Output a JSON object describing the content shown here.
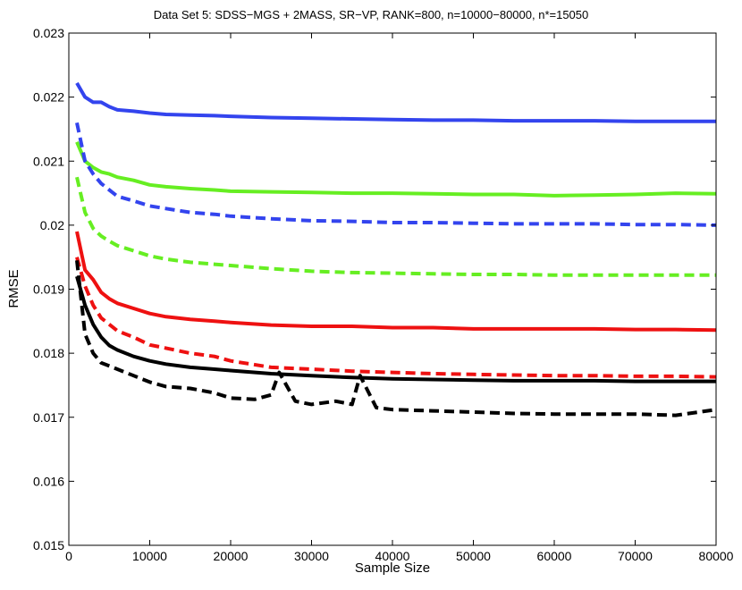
{
  "chart_data": {
    "type": "line",
    "title": "Data Set 5: SDSS−MGS + 2MASS,  SR−VP, RANK=800, n=10000−80000, n*=15050",
    "xlabel": "Sample Size",
    "ylabel": "RMSE",
    "xlim": [
      0,
      80000
    ],
    "ylim": [
      0.015,
      0.023
    ],
    "x_ticks": [
      0,
      10000,
      20000,
      30000,
      40000,
      50000,
      60000,
      70000,
      80000
    ],
    "y_ticks": [
      0.015,
      0.016,
      0.017,
      0.018,
      0.019,
      0.02,
      0.021,
      0.022,
      0.023
    ],
    "x_tick_labels": [
      "0",
      "10000",
      "20000",
      "30000",
      "40000",
      "50000",
      "60000",
      "70000",
      "80000"
    ],
    "y_tick_labels": [
      "0.015",
      "0.016",
      "0.017",
      "0.018",
      "0.019",
      "0.02",
      "0.021",
      "0.022",
      "0.023"
    ],
    "grid": false,
    "legend": "none",
    "series": [
      {
        "color": "#3344ee",
        "style": "solid",
        "x": [
          1000,
          2000,
          3000,
          4000,
          5000,
          6000,
          8000,
          10000,
          12000,
          15000,
          18000,
          20000,
          25000,
          30000,
          35000,
          40000,
          45000,
          50000,
          55000,
          60000,
          65000,
          70000,
          75000,
          80000
        ],
        "y": [
          0.02222,
          0.022,
          0.02192,
          0.02192,
          0.02185,
          0.0218,
          0.02178,
          0.02175,
          0.02173,
          0.02172,
          0.02171,
          0.0217,
          0.02168,
          0.02167,
          0.02166,
          0.02165,
          0.02164,
          0.02164,
          0.02163,
          0.02163,
          0.02163,
          0.02162,
          0.02162,
          0.02162
        ]
      },
      {
        "color": "#66ee22",
        "style": "solid",
        "x": [
          1000,
          2000,
          3000,
          4000,
          5000,
          6000,
          8000,
          10000,
          12000,
          15000,
          18000,
          20000,
          25000,
          30000,
          35000,
          40000,
          45000,
          50000,
          55000,
          60000,
          65000,
          70000,
          75000,
          80000
        ],
        "y": [
          0.0213,
          0.021,
          0.0209,
          0.02083,
          0.0208,
          0.02075,
          0.0207,
          0.02063,
          0.0206,
          0.02057,
          0.02055,
          0.02053,
          0.02052,
          0.02051,
          0.0205,
          0.0205,
          0.02049,
          0.02048,
          0.02048,
          0.02046,
          0.02047,
          0.02048,
          0.0205,
          0.02049
        ]
      },
      {
        "color": "#3344ee",
        "style": "dashed",
        "x": [
          1000,
          2000,
          3000,
          4000,
          5000,
          6000,
          8000,
          10000,
          12000,
          15000,
          18000,
          20000,
          25000,
          30000,
          35000,
          40000,
          45000,
          50000,
          55000,
          60000,
          65000,
          70000,
          75000,
          80000
        ],
        "y": [
          0.0216,
          0.021,
          0.0208,
          0.02065,
          0.02055,
          0.02045,
          0.02038,
          0.0203,
          0.02026,
          0.0202,
          0.02017,
          0.02014,
          0.0201,
          0.02007,
          0.02006,
          0.02004,
          0.02004,
          0.02003,
          0.02002,
          0.02002,
          0.02002,
          0.02001,
          0.02001,
          0.02
        ]
      },
      {
        "color": "#66ee22",
        "style": "dashed",
        "x": [
          1000,
          2000,
          3000,
          4000,
          5000,
          6000,
          8000,
          10000,
          12000,
          15000,
          18000,
          20000,
          25000,
          30000,
          35000,
          40000,
          45000,
          50000,
          55000,
          60000,
          65000,
          70000,
          75000,
          80000
        ],
        "y": [
          0.02075,
          0.0202,
          0.01995,
          0.01983,
          0.01975,
          0.01968,
          0.0196,
          0.01952,
          0.01947,
          0.01942,
          0.01939,
          0.01937,
          0.01932,
          0.01928,
          0.01926,
          0.01925,
          0.01924,
          0.01923,
          0.01923,
          0.01922,
          0.01922,
          0.01922,
          0.01922,
          0.01922
        ]
      },
      {
        "color": "#ee1111",
        "style": "solid",
        "x": [
          1000,
          2000,
          3000,
          4000,
          5000,
          6000,
          8000,
          10000,
          12000,
          15000,
          18000,
          20000,
          25000,
          30000,
          35000,
          40000,
          45000,
          50000,
          55000,
          60000,
          65000,
          70000,
          75000,
          80000
        ],
        "y": [
          0.0199,
          0.0193,
          0.01915,
          0.01895,
          0.01885,
          0.01878,
          0.0187,
          0.01862,
          0.01857,
          0.01853,
          0.0185,
          0.01848,
          0.01844,
          0.01842,
          0.01842,
          0.0184,
          0.0184,
          0.01838,
          0.01838,
          0.01838,
          0.01838,
          0.01837,
          0.01837,
          0.01836
        ]
      },
      {
        "color": "#ee1111",
        "style": "dashed",
        "x": [
          1000,
          2000,
          3000,
          4000,
          5000,
          6000,
          8000,
          10000,
          12000,
          15000,
          18000,
          20000,
          25000,
          30000,
          35000,
          40000,
          45000,
          50000,
          55000,
          60000,
          65000,
          70000,
          75000,
          80000
        ],
        "y": [
          0.0195,
          0.01905,
          0.01875,
          0.01855,
          0.01845,
          0.01835,
          0.01825,
          0.01813,
          0.01808,
          0.018,
          0.01795,
          0.01788,
          0.01778,
          0.01775,
          0.01772,
          0.0177,
          0.01768,
          0.01767,
          0.01766,
          0.01765,
          0.01765,
          0.01764,
          0.01764,
          0.01763
        ]
      },
      {
        "color": "#000000",
        "style": "solid",
        "x": [
          1000,
          2000,
          3000,
          4000,
          5000,
          6000,
          8000,
          10000,
          12000,
          15000,
          18000,
          20000,
          25000,
          30000,
          35000,
          40000,
          45000,
          50000,
          55000,
          60000,
          65000,
          70000,
          75000,
          80000
        ],
        "y": [
          0.0192,
          0.01875,
          0.01845,
          0.01825,
          0.01812,
          0.01805,
          0.01795,
          0.01788,
          0.01783,
          0.01778,
          0.01775,
          0.01773,
          0.01768,
          0.01765,
          0.01762,
          0.0176,
          0.01759,
          0.01758,
          0.01757,
          0.01757,
          0.01757,
          0.01756,
          0.01756,
          0.01756
        ]
      },
      {
        "color": "#000000",
        "style": "dashed",
        "x": [
          1000,
          2000,
          3000,
          4000,
          5000,
          6000,
          8000,
          10000,
          12000,
          15000,
          18000,
          20000,
          23000,
          25000,
          26000,
          28000,
          30000,
          33000,
          35000,
          36000,
          38000,
          40000,
          45000,
          50000,
          55000,
          60000,
          65000,
          70000,
          75000,
          80000
        ],
        "y": [
          0.01945,
          0.0183,
          0.018,
          0.01785,
          0.0178,
          0.01775,
          0.01765,
          0.01755,
          0.01748,
          0.01745,
          0.01738,
          0.0173,
          0.01728,
          0.01735,
          0.0177,
          0.01725,
          0.0172,
          0.01725,
          0.0172,
          0.01765,
          0.01715,
          0.01712,
          0.0171,
          0.01708,
          0.01706,
          0.01705,
          0.01705,
          0.01705,
          0.01703,
          0.01712
        ]
      }
    ]
  }
}
